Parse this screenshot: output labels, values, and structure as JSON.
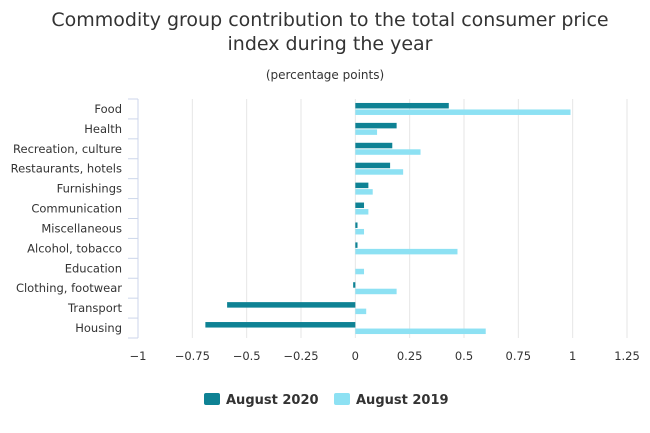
{
  "chart_data": {
    "type": "bar",
    "orientation": "horizontal",
    "title_lines": [
      "Commodity group contribution to the total consumer price",
      "index during the year"
    ],
    "subtitle": "(percentage points)",
    "categories": [
      "Food",
      "Health",
      "Recreation, culture",
      "Restaurants, hotels",
      "Furnishings",
      "Communication",
      "Miscellaneous",
      "Alcohol, tobacco",
      "Education",
      "Clothing, footwear",
      "Transport",
      "Housing"
    ],
    "series": [
      {
        "name": "August 2020",
        "color": "#0e8294",
        "values": [
          0.43,
          0.19,
          0.17,
          0.16,
          0.06,
          0.04,
          0.01,
          0.01,
          0.0,
          -0.01,
          -0.59,
          -0.69
        ]
      },
      {
        "name": "August 2019",
        "color": "#8de1f3",
        "values": [
          0.99,
          0.1,
          0.3,
          0.22,
          0.08,
          0.06,
          0.04,
          0.47,
          0.04,
          0.19,
          0.05,
          0.6
        ]
      }
    ],
    "xlim": [
      -1,
      1.25
    ],
    "x_ticks": [
      -1,
      -0.75,
      -0.5,
      -0.25,
      0,
      0.25,
      0.5,
      0.75,
      1,
      1.25
    ],
    "x_tick_labels": [
      "−1",
      "−0.75",
      "−0.5",
      "−0.25",
      "0",
      "0.25",
      "0.5",
      "0.75",
      "1",
      "1.25"
    ],
    "grid": true,
    "legend_position": "bottom-center"
  }
}
